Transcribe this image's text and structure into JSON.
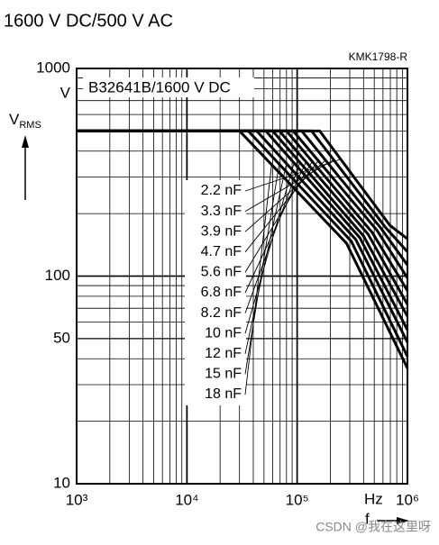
{
  "chart_data": {
    "type": "line",
    "title": "1600 V DC/500 V AC",
    "code": "KMK1798-R",
    "subtitle": "B32641B/1600 V DC",
    "y_label": "V",
    "y_label_sub": "RMS",
    "y_unit": "V",
    "x_label": "f",
    "x_unit": "Hz",
    "watermark": "CSDN @我在这里呀",
    "log_x": true,
    "log_y": true,
    "grid": true,
    "minor_grid": true,
    "xlim": [
      1000,
      1000000
    ],
    "ylim": [
      10,
      1000
    ],
    "xticks": [
      {
        "value": 1000,
        "label": "10³"
      },
      {
        "value": 10000,
        "label": "10⁴"
      },
      {
        "value": 100000,
        "label": "10⁵"
      },
      {
        "value": 1000000,
        "label": "10⁶"
      }
    ],
    "yticks": [
      10,
      50,
      100,
      1000
    ],
    "series": [
      {
        "name": "2.2 nF",
        "color": "#000000",
        "x": [
          1000,
          160000,
          690000,
          1000000
        ],
        "values": [
          500,
          500,
          176,
          151
        ]
      },
      {
        "name": "3.3 nF",
        "color": "#000000",
        "x": [
          1000,
          135000,
          630000,
          1000000
        ],
        "values": [
          500,
          500,
          172,
          131
        ]
      },
      {
        "name": "3.9 nF",
        "color": "#000000",
        "x": [
          1000,
          110000,
          580000,
          1000000
        ],
        "values": [
          500,
          500,
          169,
          113
        ]
      },
      {
        "name": "4.7 nF",
        "color": "#000000",
        "x": [
          1000,
          92000,
          530000,
          1000000
        ],
        "values": [
          500,
          500,
          166,
          98
        ]
      },
      {
        "name": "5.6 nF",
        "color": "#000000",
        "x": [
          1000,
          80000,
          480000,
          1000000
        ],
        "values": [
          500,
          500,
          162,
          85
        ]
      },
      {
        "name": "6.8 nF",
        "color": "#000000",
        "x": [
          1000,
          69000,
          440000,
          1000000
        ],
        "values": [
          500,
          500,
          159,
          73
        ]
      },
      {
        "name": "8.2 nF",
        "color": "#000000",
        "x": [
          1000,
          60000,
          400000,
          1000000
        ],
        "values": [
          500,
          500,
          156,
          64
        ]
      },
      {
        "name": "10 nF",
        "color": "#000000",
        "x": [
          1000,
          52000,
          370000,
          1000000
        ],
        "values": [
          500,
          500,
          153,
          55
        ]
      },
      {
        "name": "12 nF",
        "color": "#000000",
        "x": [
          1000,
          43000,
          340000,
          1000000
        ],
        "values": [
          500,
          500,
          150,
          48
        ]
      },
      {
        "name": "15 nF",
        "color": "#000000",
        "x": [
          1000,
          36000,
          310000,
          1000000
        ],
        "values": [
          500,
          500,
          147,
          41
        ]
      },
      {
        "name": "18 nF",
        "color": "#000000",
        "x": [
          1000,
          30000,
          280000,
          1000000
        ],
        "values": [
          500,
          500,
          144,
          36
        ]
      }
    ]
  }
}
